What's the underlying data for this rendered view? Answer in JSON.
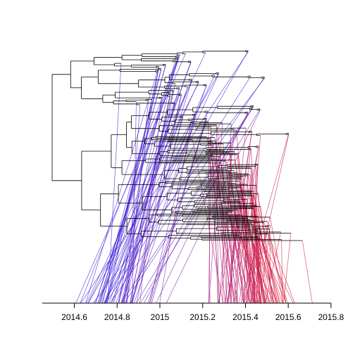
{
  "chart_data": {
    "type": "scatter",
    "title": "",
    "xlabel": "",
    "ylabel": "",
    "xlim": [
      2014.45,
      2015.82
    ],
    "x_ticks": [
      2014.6,
      2014.8,
      2015.0,
      2015.2,
      2015.4,
      2015.6,
      2015.8
    ],
    "x_tick_labels": [
      "2014.6",
      "2014.8",
      "2015",
      "2015.2",
      "2015.4",
      "2015.6",
      "2015.8"
    ],
    "grid": false,
    "legend": "none",
    "tree_color": "#000000",
    "color_scale": {
      "early": "#3b1bd6",
      "mid": "#9a1a8f",
      "late": "#d8143a"
    },
    "color_domain": [
      2014.75,
      2015.55
    ],
    "tree_date_range": [
      2014.6,
      2015.72
    ],
    "tree_depth_range": [
      -0.02,
      1.1
    ],
    "tip_count": 180,
    "random_seed": 7
  }
}
